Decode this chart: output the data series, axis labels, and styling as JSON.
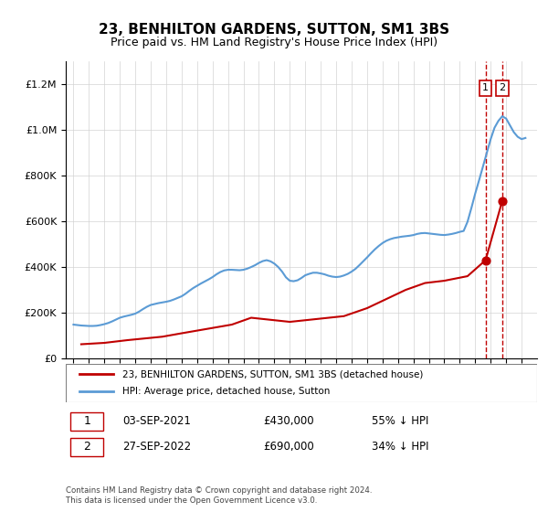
{
  "title": "23, BENHILTON GARDENS, SUTTON, SM1 3BS",
  "subtitle": "Price paid vs. HM Land Registry's House Price Index (HPI)",
  "legend_line1": "23, BENHILTON GARDENS, SUTTON, SM1 3BS (detached house)",
  "legend_line2": "HPI: Average price, detached house, Sutton",
  "footnote": "Contains HM Land Registry data © Crown copyright and database right 2024.\nThis data is licensed under the Open Government Licence v3.0.",
  "sale1_label": "1",
  "sale1_date": "03-SEP-2021",
  "sale1_price": "£430,000",
  "sale1_note": "55% ↓ HPI",
  "sale2_label": "2",
  "sale2_date": "27-SEP-2022",
  "sale2_price": "£690,000",
  "sale2_note": "34% ↓ HPI",
  "hpi_color": "#5b9bd5",
  "price_color": "#c00000",
  "dashed_color": "#c00000",
  "marker1_x": 2021.67,
  "marker2_x": 2022.75,
  "ylim_max": 1300000,
  "hpi_data": {
    "years": [
      1995,
      1995.25,
      1995.5,
      1995.75,
      1996,
      1996.25,
      1996.5,
      1996.75,
      1997,
      1997.25,
      1997.5,
      1997.75,
      1998,
      1998.25,
      1998.5,
      1998.75,
      1999,
      1999.25,
      1999.5,
      1999.75,
      2000,
      2000.25,
      2000.5,
      2000.75,
      2001,
      2001.25,
      2001.5,
      2001.75,
      2002,
      2002.25,
      2002.5,
      2002.75,
      2003,
      2003.25,
      2003.5,
      2003.75,
      2004,
      2004.25,
      2004.5,
      2004.75,
      2005,
      2005.25,
      2005.5,
      2005.75,
      2006,
      2006.25,
      2006.5,
      2006.75,
      2007,
      2007.25,
      2007.5,
      2007.75,
      2008,
      2008.25,
      2008.5,
      2008.75,
      2009,
      2009.25,
      2009.5,
      2009.75,
      2010,
      2010.25,
      2010.5,
      2010.75,
      2011,
      2011.25,
      2011.5,
      2011.75,
      2012,
      2012.25,
      2012.5,
      2012.75,
      2013,
      2013.25,
      2013.5,
      2013.75,
      2014,
      2014.25,
      2014.5,
      2014.75,
      2015,
      2015.25,
      2015.5,
      2015.75,
      2016,
      2016.25,
      2016.5,
      2016.75,
      2017,
      2017.25,
      2017.5,
      2017.75,
      2018,
      2018.25,
      2018.5,
      2018.75,
      2019,
      2019.25,
      2019.5,
      2019.75,
      2020,
      2020.25,
      2020.5,
      2020.75,
      2021,
      2021.25,
      2021.5,
      2021.75,
      2022,
      2022.25,
      2022.5,
      2022.75,
      2023,
      2023.25,
      2023.5,
      2023.75,
      2024,
      2024.25
    ],
    "values": [
      148000,
      146000,
      144000,
      143000,
      142000,
      142000,
      143000,
      146000,
      150000,
      155000,
      162000,
      170000,
      178000,
      183000,
      187000,
      191000,
      196000,
      205000,
      216000,
      226000,
      234000,
      238000,
      242000,
      245000,
      248000,
      252000,
      258000,
      265000,
      272000,
      283000,
      296000,
      308000,
      318000,
      328000,
      337000,
      346000,
      356000,
      368000,
      378000,
      385000,
      388000,
      388000,
      387000,
      386000,
      388000,
      393000,
      400000,
      408000,
      418000,
      426000,
      430000,
      425000,
      415000,
      400000,
      380000,
      355000,
      340000,
      338000,
      342000,
      352000,
      364000,
      370000,
      375000,
      375000,
      372000,
      368000,
      362000,
      358000,
      356000,
      358000,
      363000,
      370000,
      380000,
      392000,
      408000,
      425000,
      442000,
      460000,
      477000,
      492000,
      505000,
      515000,
      522000,
      527000,
      530000,
      533000,
      535000,
      537000,
      540000,
      545000,
      548000,
      549000,
      547000,
      545000,
      543000,
      541000,
      540000,
      542000,
      545000,
      549000,
      554000,
      558000,
      598000,
      658000,
      722000,
      780000,
      840000,
      900000,
      960000,
      1010000,
      1040000,
      1060000,
      1050000,
      1020000,
      990000,
      970000,
      960000,
      965000
    ]
  },
  "price_data": {
    "years": [
      1995.5,
      1997.0,
      1998.5,
      2000.75,
      2002.0,
      2005.25,
      2006.5,
      2009.0,
      2012.5,
      2014.0,
      2015.25,
      2016.5,
      2017.75,
      2019.0,
      2020.5,
      2021.67,
      2022.75
    ],
    "values": [
      62000,
      68000,
      80000,
      95000,
      110000,
      148000,
      178000,
      160000,
      185000,
      220000,
      260000,
      300000,
      330000,
      340000,
      360000,
      430000,
      690000
    ]
  }
}
